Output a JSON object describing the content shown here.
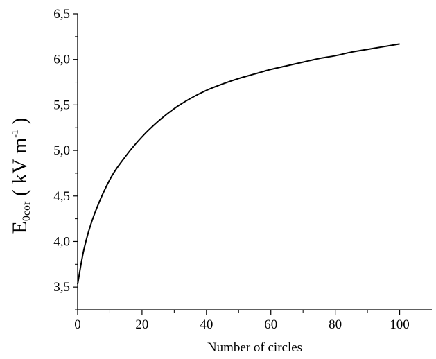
{
  "chart_data": {
    "type": "line",
    "xlabel": "Number of circles",
    "ylabel": {
      "base": "E",
      "subscript": "0cor",
      "unit_open": " ( kV m",
      "unit_sup": "-1",
      "unit_close": " )"
    },
    "xlim": [
      0,
      110
    ],
    "ylim": [
      3.25,
      6.5
    ],
    "x_ticks": [
      0,
      20,
      40,
      60,
      80,
      100
    ],
    "x_tick_labels": [
      "0",
      "20",
      "40",
      "60",
      "80",
      "100"
    ],
    "y_ticks": [
      3.5,
      4.0,
      4.5,
      5.0,
      5.5,
      6.0,
      6.5
    ],
    "y_tick_labels": [
      "3,5",
      "4,0",
      "4,5",
      "5,0",
      "5,5",
      "6,0",
      "6,5"
    ],
    "grid": false,
    "series": [
      {
        "color": "#000000",
        "x": [
          0,
          2,
          5,
          10,
          15,
          20,
          25,
          30,
          35,
          40,
          45,
          50,
          55,
          60,
          65,
          70,
          75,
          80,
          85,
          90,
          95,
          100
        ],
        "y": [
          3.53,
          3.92,
          4.28,
          4.68,
          4.94,
          5.15,
          5.32,
          5.46,
          5.57,
          5.66,
          5.73,
          5.79,
          5.84,
          5.89,
          5.93,
          5.97,
          6.01,
          6.04,
          6.08,
          6.11,
          6.14,
          6.17
        ]
      }
    ]
  }
}
